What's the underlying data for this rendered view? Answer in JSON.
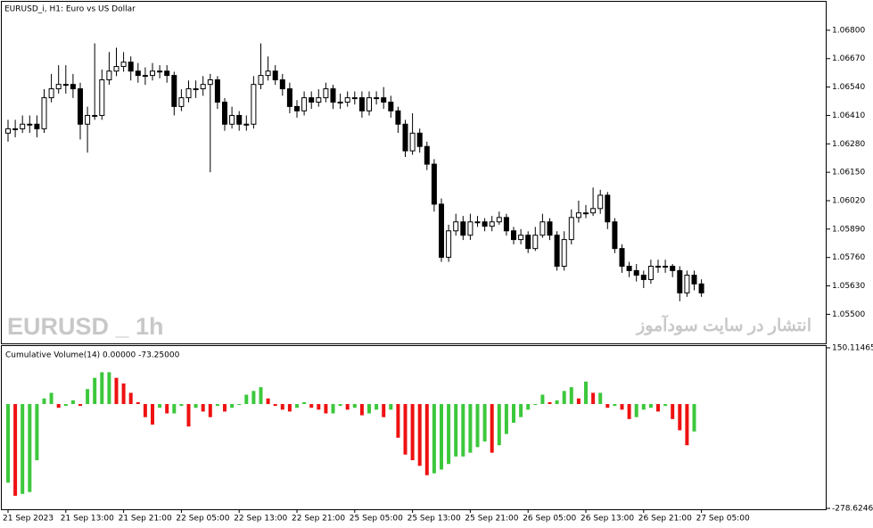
{
  "chart_data": [
    {
      "type": "candlestick",
      "title": "EURUSD_i, H1:  Euro vs US Dollar",
      "annotations": [
        "EURUSD _ 1h",
        "انتشار در سایت سودآموز"
      ],
      "categories": [
        "21 Sep 2023",
        null,
        null,
        null,
        null,
        null,
        null,
        null,
        "21 Sep 13:00",
        null,
        null,
        null,
        null,
        null,
        null,
        null,
        "21 Sep 21:00",
        null,
        null,
        null,
        null,
        null,
        null,
        null,
        "22 Sep 05:00",
        null,
        null,
        null,
        null,
        null,
        null,
        null,
        "22 Sep 13:00",
        null,
        null,
        null,
        null,
        null,
        null,
        null,
        "22 Sep 21:00",
        null,
        null,
        null,
        null,
        null,
        null,
        null,
        "25 Sep 05:00",
        null,
        null,
        null,
        null,
        null,
        null,
        null,
        "25 Sep 13:00",
        null,
        null,
        null,
        null,
        null,
        null,
        null,
        "25 Sep 21:00",
        null,
        null,
        null,
        null,
        null,
        null,
        null,
        "26 Sep 05:00",
        null,
        null,
        null,
        null,
        null,
        null,
        null,
        "26 Sep 13:00",
        null,
        null,
        null,
        null,
        null,
        null,
        null,
        "26 Sep 21:00",
        null,
        null,
        null,
        null,
        null,
        null,
        null,
        "27 Sep 05:00"
      ],
      "up_color": "#ffffff",
      "down_color": "#000000",
      "line_color": "#000000",
      "open": [
        1.06329,
        1.06349,
        1.06349,
        1.0637,
        1.0637,
        1.06349,
        1.06491,
        1.06532,
        1.06552,
        1.06552,
        1.06532,
        1.0637,
        1.0641,
        1.0641,
        1.06573,
        1.06613,
        1.06634,
        1.06654,
        1.06613,
        1.06593,
        1.06593,
        1.06613,
        1.06613,
        1.06593,
        1.06451,
        1.06491,
        1.06532,
        1.06532,
        1.06552,
        1.06573,
        1.06471,
        1.0637,
        1.0641,
        1.0637,
        1.0637,
        1.06552,
        1.06593,
        1.06613,
        1.06573,
        1.06532,
        1.06451,
        1.06431,
        1.06491,
        1.06471,
        1.06491,
        1.06532,
        1.06471,
        1.06471,
        1.06491,
        1.06491,
        1.06431,
        1.06491,
        1.06491,
        1.06471,
        1.06431,
        1.0637,
        1.06248,
        1.06329,
        1.06268,
        1.06187,
        1.06004,
        1.05761,
        1.05882,
        1.05923,
        1.05862,
        1.05923,
        1.05923,
        1.05903,
        1.05923,
        1.05943,
        1.05882,
        1.05842,
        1.05862,
        1.05801,
        1.05862,
        1.05923,
        1.05862,
        1.0572,
        1.05842,
        1.05943,
        1.05964,
        1.05964,
        1.05984,
        1.06045,
        1.05923,
        1.05801,
        1.0572,
        1.057,
        1.05679,
        1.05659,
        1.0572,
        1.0572,
        1.0572,
        1.057,
        1.05598,
        1.05679,
        1.05639
      ],
      "high": [
        1.0639,
        1.0639,
        1.0641,
        1.0641,
        1.0641,
        1.0653,
        1.066,
        1.0664,
        1.0664,
        1.066,
        1.0656,
        1.0645,
        1.0674,
        1.0662,
        1.067,
        1.0672,
        1.067,
        1.0668,
        1.0665,
        1.0663,
        1.0665,
        1.0664,
        1.0664,
        1.0661,
        1.0653,
        1.0657,
        1.0657,
        1.0659,
        1.066,
        1.0659,
        1.0649,
        1.0645,
        1.0643,
        1.0641,
        1.0659,
        1.0674,
        1.0668,
        1.0664,
        1.066,
        1.0656,
        1.0648,
        1.0652,
        1.0652,
        1.0653,
        1.0656,
        1.0655,
        1.0651,
        1.0652,
        1.0652,
        1.0652,
        1.0652,
        1.0652,
        1.0654,
        1.065,
        1.0645,
        1.0639,
        1.0642,
        1.0635,
        1.0629,
        1.0621,
        1.0603,
        1.0591,
        1.0596,
        1.0595,
        1.0596,
        1.0595,
        1.0594,
        1.0595,
        1.0597,
        1.0596,
        1.059,
        1.0589,
        1.0588,
        1.059,
        1.0596,
        1.0594,
        1.0588,
        1.0588,
        1.0598,
        1.0602,
        1.06,
        1.0608,
        1.0607,
        1.0606,
        1.0594,
        1.0582,
        1.0574,
        1.0573,
        1.057,
        1.0575,
        1.0575,
        1.0575,
        1.0573,
        1.0572,
        1.057,
        1.057,
        1.0566
      ],
      "low": [
        1.0629,
        1.0631,
        1.0633,
        1.0633,
        1.0631,
        1.0633,
        1.0647,
        1.0651,
        1.0651,
        1.0649,
        1.063,
        1.0624,
        1.0639,
        1.0639,
        1.0655,
        1.0659,
        1.0661,
        1.0657,
        1.0656,
        1.0655,
        1.0657,
        1.0658,
        1.0656,
        1.0641,
        1.0643,
        1.0647,
        1.0649,
        1.065,
        1.0615,
        1.0644,
        1.0634,
        1.0635,
        1.0634,
        1.0634,
        1.0635,
        1.0653,
        1.0657,
        1.0655,
        1.065,
        1.0642,
        1.064,
        1.0641,
        1.0644,
        1.0645,
        1.0647,
        1.0644,
        1.0644,
        1.0645,
        1.0646,
        1.064,
        1.0641,
        1.0646,
        1.0644,
        1.064,
        1.0633,
        1.0622,
        1.0623,
        1.0624,
        1.0616,
        1.0597,
        1.0574,
        1.0574,
        1.0586,
        1.0584,
        1.0584,
        1.059,
        1.0588,
        1.0588,
        1.0591,
        1.0586,
        1.0582,
        1.0582,
        1.0578,
        1.0579,
        1.0585,
        1.0584,
        1.057,
        1.057,
        1.0582,
        1.0592,
        1.0594,
        1.0595,
        1.0596,
        1.0589,
        1.0578,
        1.0569,
        1.0567,
        1.0565,
        1.0562,
        1.0564,
        1.0569,
        1.0569,
        1.0567,
        1.0556,
        1.0558,
        1.0561,
        1.0558
      ],
      "close": [
        1.06349,
        1.06349,
        1.0637,
        1.0637,
        1.06349,
        1.06491,
        1.06532,
        1.06552,
        1.06552,
        1.06532,
        1.0637,
        1.0641,
        1.0641,
        1.06573,
        1.06613,
        1.06634,
        1.06654,
        1.06613,
        1.06593,
        1.06593,
        1.06613,
        1.06613,
        1.06593,
        1.06451,
        1.06491,
        1.06532,
        1.06532,
        1.06552,
        1.06573,
        1.06471,
        1.0637,
        1.0641,
        1.0637,
        1.0637,
        1.06552,
        1.06593,
        1.06613,
        1.06573,
        1.06532,
        1.06451,
        1.06431,
        1.06491,
        1.06471,
        1.06491,
        1.06532,
        1.06471,
        1.06471,
        1.06491,
        1.06491,
        1.06431,
        1.06491,
        1.06491,
        1.06471,
        1.06431,
        1.0637,
        1.06248,
        1.06329,
        1.06268,
        1.06187,
        1.06004,
        1.05761,
        1.05882,
        1.05923,
        1.05862,
        1.05923,
        1.05923,
        1.05903,
        1.05923,
        1.05943,
        1.05882,
        1.05842,
        1.05862,
        1.05801,
        1.05862,
        1.05923,
        1.05862,
        1.0572,
        1.05842,
        1.05943,
        1.05964,
        1.05964,
        1.05984,
        1.06045,
        1.05923,
        1.05801,
        1.0572,
        1.057,
        1.05679,
        1.05659,
        1.0572,
        1.0572,
        1.0572,
        1.057,
        1.05598,
        1.05679,
        1.05639,
        1.05598
      ],
      "ylim": [
        1.05371,
        1.06922
      ],
      "yticks": [
        {
          "value": 1.068,
          "label": "1.06800"
        },
        {
          "value": 1.0667,
          "label": "1.06670"
        },
        {
          "value": 1.0654,
          "label": "1.06540"
        },
        {
          "value": 1.0641,
          "label": "1.06410"
        },
        {
          "value": 1.0628,
          "label": "1.06280"
        },
        {
          "value": 1.0615,
          "label": "1.06150"
        },
        {
          "value": 1.0602,
          "label": "1.06020"
        },
        {
          "value": 1.0589,
          "label": "1.05890"
        },
        {
          "value": 1.0576,
          "label": "1.05760"
        },
        {
          "value": 1.0563,
          "label": "1.05630"
        },
        {
          "value": 1.055,
          "label": "1.05500"
        }
      ]
    },
    {
      "type": "histogram_bars",
      "title": "Cumulative Volume(14) 0.00000 -73.25000",
      "up_color": "#3cc83c",
      "down_color": "#ee1111",
      "values": [
        -210,
        -245,
        -240,
        -235,
        -150,
        15,
        30,
        -10,
        -5,
        10,
        -5,
        40,
        70,
        85,
        85,
        70,
        55,
        30,
        5,
        -35,
        -55,
        -10,
        -25,
        -25,
        -5,
        -60,
        -10,
        -20,
        -35,
        -5,
        -20,
        -10,
        0,
        25,
        35,
        45,
        15,
        -5,
        -15,
        -20,
        -10,
        5,
        -10,
        -15,
        -25,
        -25,
        -5,
        -15,
        -10,
        -30,
        -25,
        -15,
        -35,
        -15,
        -90,
        -135,
        -150,
        -165,
        -190,
        -185,
        -175,
        -160,
        -140,
        -140,
        -130,
        -115,
        -100,
        -130,
        -110,
        -80,
        -50,
        -35,
        -15,
        0,
        25,
        5,
        10,
        35,
        45,
        15,
        60,
        30,
        30,
        -10,
        -5,
        -15,
        -40,
        -35,
        -15,
        -10,
        -20,
        -5,
        -40,
        -70,
        -110,
        -73.25
      ],
      "ylim": [
        -278.62465,
        150.11465
      ],
      "yticks": [
        150.11465,
        -278.62465
      ]
    }
  ]
}
